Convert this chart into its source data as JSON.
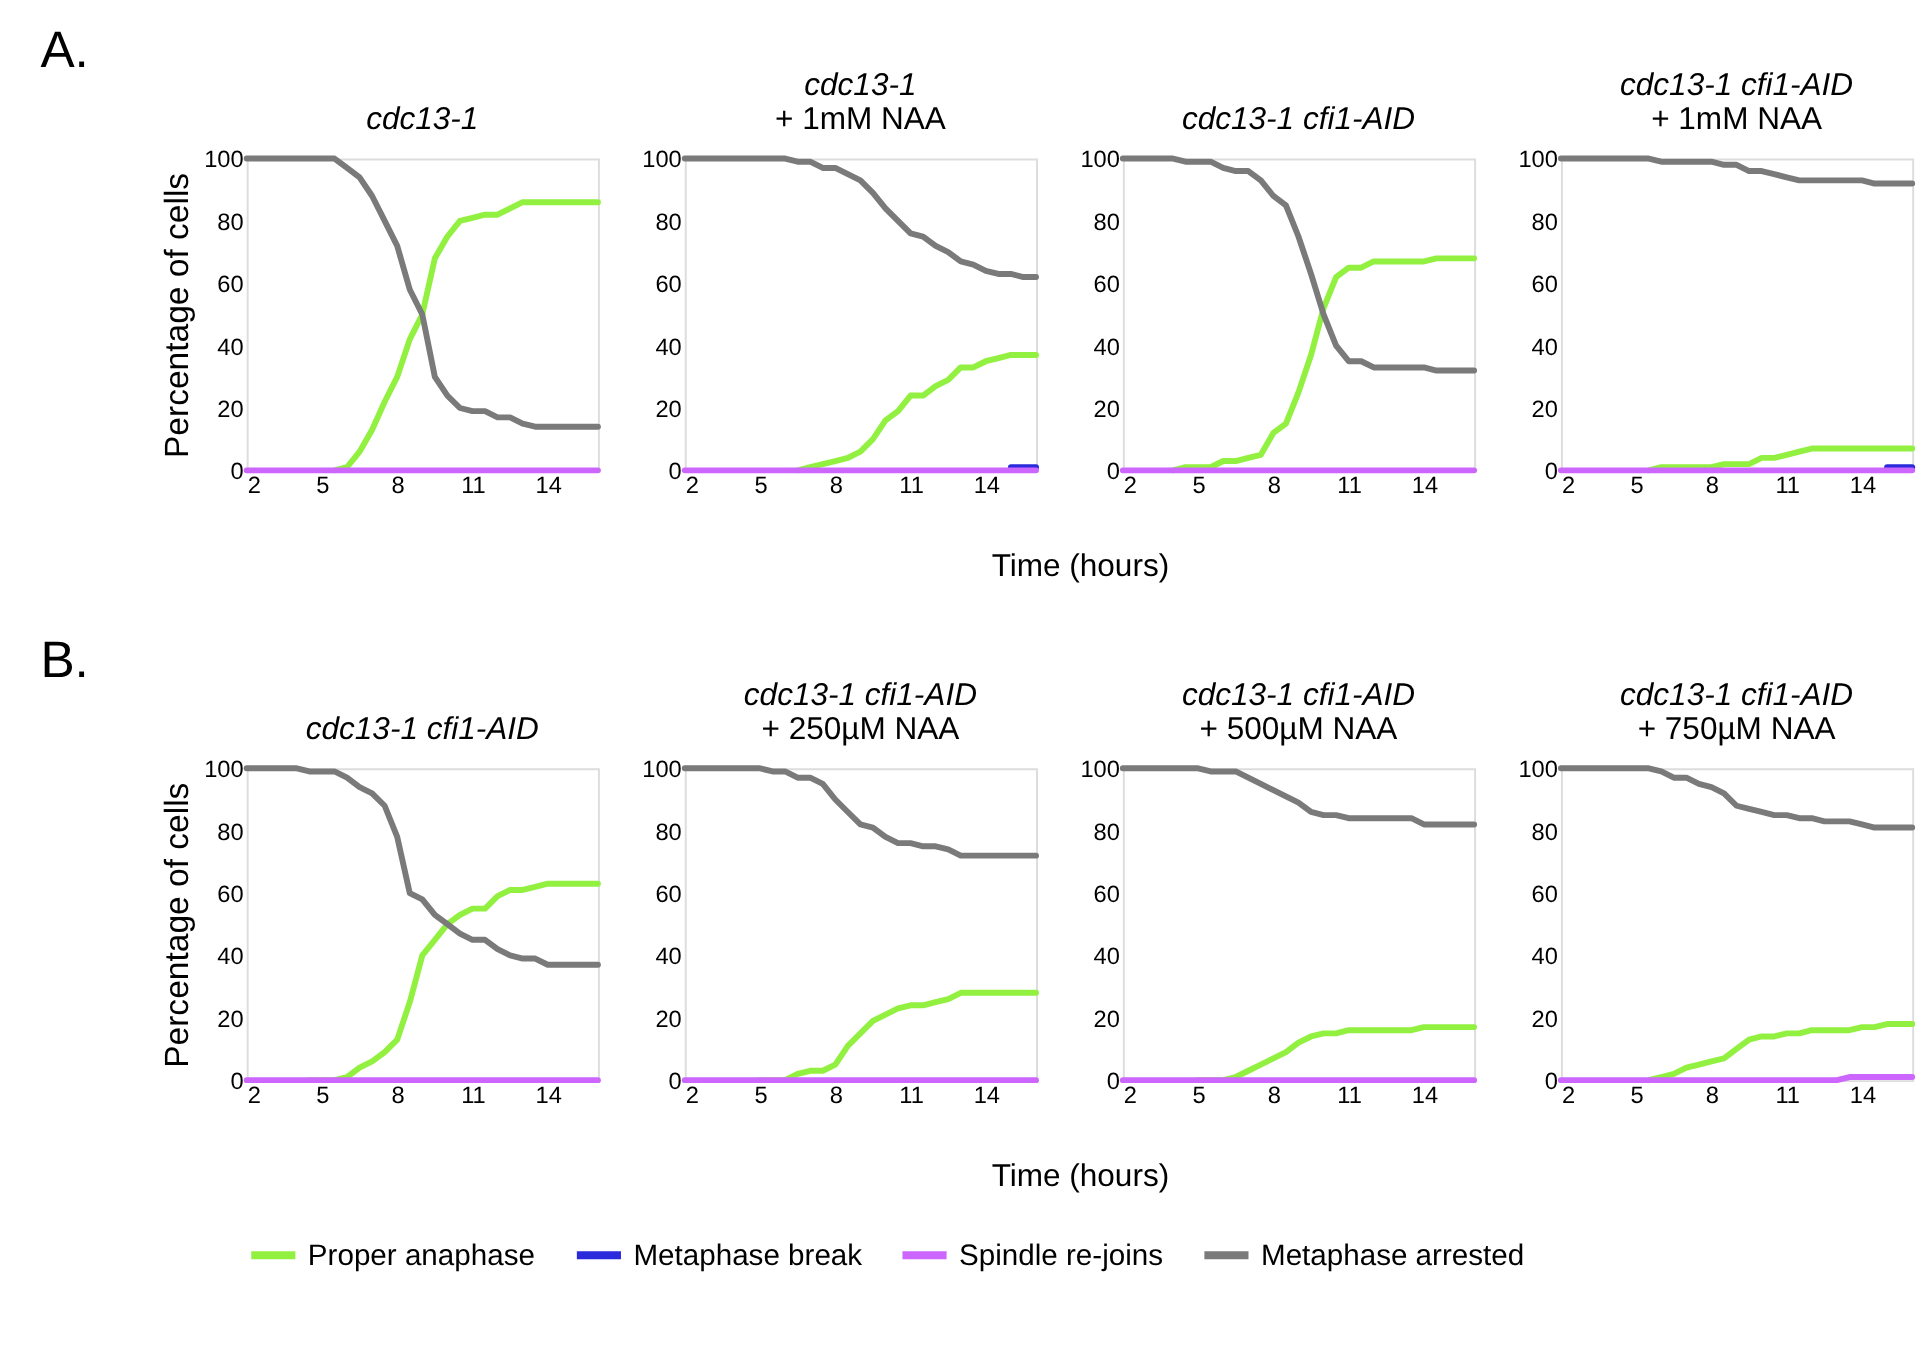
{
  "chart_data": [
    {
      "type": "line",
      "title": "cdc13-1",
      "ylabel": "Percentage of cells",
      "annotations": [
        "A."
      ],
      "xlim": [
        2,
        16
      ],
      "xticks": [
        2,
        5,
        8,
        11,
        14
      ],
      "ylim": [
        0,
        100
      ],
      "yticks": [
        0,
        20,
        40,
        60,
        80,
        100
      ],
      "grid": false,
      "legend": "bottom",
      "line_style": "solid",
      "x": [
        2,
        2.5,
        3,
        3.5,
        4,
        4.5,
        5,
        5.5,
        6,
        6.5,
        7,
        7.5,
        8,
        8.5,
        9,
        9.5,
        10,
        10.5,
        11,
        11.5,
        12,
        12.5,
        13,
        13.5,
        14,
        14.5,
        15,
        15.5,
        16
      ],
      "series": [
        {
          "name": "Proper anaphase",
          "color": "#92f040",
          "values": [
            null,
            null,
            null,
            null,
            null,
            null,
            null,
            0,
            1,
            6,
            13,
            22,
            30,
            42,
            50,
            68,
            75,
            80,
            81,
            82,
            82,
            84,
            86,
            86,
            86,
            86,
            86,
            86,
            86
          ]
        },
        {
          "name": "Metaphase break",
          "color": "#2b2bdb",
          "values": [
            null,
            null,
            null,
            null,
            null,
            null,
            null,
            null,
            null,
            null,
            null,
            null,
            null,
            null,
            null,
            null,
            null,
            null,
            null,
            null,
            null,
            null,
            null,
            null,
            null,
            null,
            null,
            null,
            null
          ]
        },
        {
          "name": "Spindle re-joins",
          "color": "#cc66ff",
          "values": [
            0,
            0,
            0,
            0,
            0,
            0,
            0,
            0,
            0,
            0,
            0,
            0,
            0,
            0,
            0,
            0,
            0,
            0,
            0,
            0,
            0,
            0,
            0,
            0,
            0,
            0,
            0,
            0,
            0
          ]
        },
        {
          "name": "Metaphase arrested",
          "color": "#7a7a7a",
          "values": [
            100,
            100,
            100,
            100,
            100,
            100,
            100,
            100,
            97,
            94,
            88,
            80,
            72,
            58,
            50,
            30,
            24,
            20,
            19,
            19,
            17,
            17,
            15,
            14,
            14,
            14,
            14,
            14,
            14
          ]
        }
      ]
    },
    {
      "type": "line",
      "title": "cdc13-1",
      "subtitle": "+ 1mM NAA",
      "xlabel": "Time (hours)",
      "xlim": [
        2,
        16
      ],
      "xticks": [
        2,
        5,
        8,
        11,
        14
      ],
      "ylim": [
        0,
        100
      ],
      "yticks": [
        0,
        20,
        40,
        60,
        80,
        100
      ],
      "grid": false,
      "line_style": "solid",
      "x": [
        2,
        2.5,
        3,
        3.5,
        4,
        4.5,
        5,
        5.5,
        6,
        6.5,
        7,
        7.5,
        8,
        8.5,
        9,
        9.5,
        10,
        10.5,
        11,
        11.5,
        12,
        12.5,
        13,
        13.5,
        14,
        14.5,
        15,
        15.5,
        16
      ],
      "series": [
        {
          "color": "#92f040",
          "values": [
            null,
            null,
            null,
            null,
            null,
            null,
            null,
            null,
            null,
            0,
            1,
            2,
            3,
            4,
            6,
            10,
            16,
            19,
            24,
            24,
            27,
            29,
            33,
            33,
            35,
            36,
            37,
            37,
            37
          ]
        },
        {
          "color": "#2b2bdb",
          "values": [
            null,
            null,
            null,
            null,
            null,
            null,
            null,
            null,
            null,
            null,
            null,
            null,
            null,
            null,
            null,
            null,
            null,
            null,
            null,
            null,
            null,
            null,
            null,
            null,
            null,
            null,
            1,
            1,
            1
          ]
        },
        {
          "color": "#cc66ff",
          "values": [
            0,
            0,
            0,
            0,
            0,
            0,
            0,
            0,
            0,
            0,
            0,
            0,
            0,
            0,
            0,
            0,
            0,
            0,
            0,
            0,
            0,
            0,
            0,
            0,
            0,
            0,
            0,
            0,
            0
          ]
        },
        {
          "color": "#7a7a7a",
          "values": [
            100,
            100,
            100,
            100,
            100,
            100,
            100,
            100,
            100,
            99,
            99,
            97,
            97,
            95,
            93,
            89,
            84,
            80,
            76,
            75,
            72,
            70,
            67,
            66,
            64,
            63,
            63,
            62,
            62
          ]
        }
      ]
    },
    {
      "type": "line",
      "title": "cdc13-1 cfi1-AID",
      "xlim": [
        2,
        16
      ],
      "xticks": [
        2,
        5,
        8,
        11,
        14
      ],
      "ylim": [
        0,
        100
      ],
      "yticks": [
        0,
        20,
        40,
        60,
        80,
        100
      ],
      "grid": false,
      "line_style": "solid",
      "x": [
        2,
        2.5,
        3,
        3.5,
        4,
        4.5,
        5,
        5.5,
        6,
        6.5,
        7,
        7.5,
        8,
        8.5,
        9,
        9.5,
        10,
        10.5,
        11,
        11.5,
        12,
        12.5,
        13,
        13.5,
        14,
        14.5,
        15,
        15.5,
        16
      ],
      "series": [
        {
          "color": "#92f040",
          "values": [
            null,
            null,
            null,
            null,
            0,
            1,
            1,
            1,
            3,
            3,
            4,
            5,
            12,
            15,
            25,
            37,
            52,
            62,
            65,
            65,
            67,
            67,
            67,
            67,
            67,
            68,
            68,
            68,
            68
          ]
        },
        {
          "color": "#cc66ff",
          "values": [
            0,
            0,
            0,
            0,
            0,
            0,
            0,
            0,
            0,
            0,
            0,
            0,
            0,
            0,
            0,
            0,
            0,
            0,
            0,
            0,
            0,
            0,
            0,
            0,
            0,
            0,
            0,
            0,
            0
          ]
        },
        {
          "color": "#7a7a7a",
          "values": [
            100,
            100,
            100,
            100,
            100,
            99,
            99,
            99,
            97,
            96,
            96,
            93,
            88,
            85,
            75,
            63,
            50,
            40,
            35,
            35,
            33,
            33,
            33,
            33,
            33,
            32,
            32,
            32,
            32
          ]
        }
      ]
    },
    {
      "type": "line",
      "title": "cdc13-1 cfi1-AID",
      "subtitle": "+ 1mM NAA",
      "xlim": [
        2,
        16
      ],
      "xticks": [
        2,
        5,
        8,
        11,
        14
      ],
      "ylim": [
        0,
        100
      ],
      "yticks": [
        0,
        20,
        40,
        60,
        80,
        100
      ],
      "grid": false,
      "line_style": "solid",
      "x": [
        2,
        2.5,
        3,
        3.5,
        4,
        4.5,
        5,
        5.5,
        6,
        6.5,
        7,
        7.5,
        8,
        8.5,
        9,
        9.5,
        10,
        10.5,
        11,
        11.5,
        12,
        12.5,
        13,
        13.5,
        14,
        14.5,
        15,
        15.5,
        16
      ],
      "series": [
        {
          "color": "#92f040",
          "values": [
            null,
            null,
            null,
            null,
            null,
            null,
            null,
            0,
            1,
            1,
            1,
            1,
            1,
            2,
            2,
            2,
            4,
            4,
            5,
            6,
            7,
            7,
            7,
            7,
            7,
            7,
            7,
            7,
            7
          ]
        },
        {
          "color": "#2b2bdb",
          "values": [
            null,
            null,
            null,
            null,
            null,
            null,
            null,
            null,
            null,
            null,
            null,
            null,
            null,
            null,
            null,
            null,
            null,
            null,
            null,
            null,
            null,
            null,
            null,
            null,
            null,
            null,
            1,
            1,
            1
          ]
        },
        {
          "color": "#cc66ff",
          "values": [
            0,
            0,
            0,
            0,
            0,
            0,
            0,
            0,
            0,
            0,
            0,
            0,
            0,
            0,
            0,
            0,
            0,
            0,
            0,
            0,
            0,
            0,
            0,
            0,
            0,
            0,
            0,
            0,
            0
          ]
        },
        {
          "color": "#7a7a7a",
          "values": [
            100,
            100,
            100,
            100,
            100,
            100,
            100,
            100,
            99,
            99,
            99,
            99,
            99,
            98,
            98,
            96,
            96,
            95,
            94,
            93,
            93,
            93,
            93,
            93,
            93,
            92,
            92,
            92,
            92
          ]
        }
      ]
    },
    {
      "type": "line",
      "title": "cdc13-1 cfi1-AID",
      "ylabel": "Percentage of cells",
      "annotations": [
        "B."
      ],
      "xlim": [
        2,
        16
      ],
      "xticks": [
        2,
        5,
        8,
        11,
        14
      ],
      "ylim": [
        0,
        100
      ],
      "yticks": [
        0,
        20,
        40,
        60,
        80,
        100
      ],
      "grid": false,
      "line_style": "solid",
      "x": [
        2,
        2.5,
        3,
        3.5,
        4,
        4.5,
        5,
        5.5,
        6,
        6.5,
        7,
        7.5,
        8,
        8.5,
        9,
        9.5,
        10,
        10.5,
        11,
        11.5,
        12,
        12.5,
        13,
        13.5,
        14,
        14.5,
        15,
        15.5,
        16
      ],
      "series": [
        {
          "color": "#92f040",
          "values": [
            null,
            null,
            null,
            null,
            null,
            0,
            0,
            0,
            1,
            4,
            6,
            9,
            13,
            25,
            40,
            45,
            50,
            53,
            55,
            55,
            59,
            61,
            61,
            62,
            63,
            63,
            63,
            63,
            63
          ]
        },
        {
          "color": "#cc66ff",
          "values": [
            0,
            0,
            0,
            0,
            0,
            0,
            0,
            0,
            0,
            0,
            0,
            0,
            0,
            0,
            0,
            0,
            0,
            0,
            0,
            0,
            0,
            0,
            0,
            0,
            0,
            0,
            0,
            0,
            0
          ]
        },
        {
          "color": "#7a7a7a",
          "values": [
            100,
            100,
            100,
            100,
            100,
            99,
            99,
            99,
            97,
            94,
            92,
            88,
            78,
            60,
            58,
            53,
            50,
            47,
            45,
            45,
            42,
            40,
            39,
            39,
            37,
            37,
            37,
            37,
            37
          ]
        }
      ]
    },
    {
      "type": "line",
      "title": "cdc13-1 cfi1-AID",
      "subtitle": "+ 250µM NAA",
      "xlabel": "Time (hours)",
      "xlim": [
        2,
        16
      ],
      "xticks": [
        2,
        5,
        8,
        11,
        14
      ],
      "ylim": [
        0,
        100
      ],
      "yticks": [
        0,
        20,
        40,
        60,
        80,
        100
      ],
      "grid": false,
      "line_style": "solid",
      "x": [
        2,
        2.5,
        3,
        3.5,
        4,
        4.5,
        5,
        5.5,
        6,
        6.5,
        7,
        7.5,
        8,
        8.5,
        9,
        9.5,
        10,
        10.5,
        11,
        11.5,
        12,
        12.5,
        13,
        13.5,
        14,
        14.5,
        15,
        15.5,
        16
      ],
      "series": [
        {
          "color": "#92f040",
          "values": [
            null,
            null,
            null,
            null,
            null,
            null,
            0,
            0,
            0,
            2,
            3,
            3,
            5,
            11,
            15,
            19,
            21,
            23,
            24,
            24,
            25,
            26,
            28,
            28,
            28,
            28,
            28,
            28,
            28
          ]
        },
        {
          "color": "#cc66ff",
          "values": [
            0,
            0,
            0,
            0,
            0,
            0,
            0,
            0,
            0,
            0,
            0,
            0,
            0,
            0,
            0,
            0,
            0,
            0,
            0,
            0,
            0,
            0,
            0,
            0,
            0,
            0,
            0,
            0,
            0
          ]
        },
        {
          "color": "#7a7a7a",
          "values": [
            100,
            100,
            100,
            100,
            100,
            100,
            100,
            99,
            99,
            97,
            97,
            95,
            90,
            86,
            82,
            81,
            78,
            76,
            76,
            75,
            75,
            74,
            72,
            72,
            72,
            72,
            72,
            72,
            72
          ]
        }
      ]
    },
    {
      "type": "line",
      "title": "cdc13-1 cfi1-AID",
      "subtitle": "+ 500µM NAA",
      "xlim": [
        2,
        16
      ],
      "xticks": [
        2,
        5,
        8,
        11,
        14
      ],
      "ylim": [
        0,
        100
      ],
      "yticks": [
        0,
        20,
        40,
        60,
        80,
        100
      ],
      "grid": false,
      "line_style": "solid",
      "x": [
        2,
        2.5,
        3,
        3.5,
        4,
        4.5,
        5,
        5.5,
        6,
        6.5,
        7,
        7.5,
        8,
        8.5,
        9,
        9.5,
        10,
        10.5,
        11,
        11.5,
        12,
        12.5,
        13,
        13.5,
        14,
        14.5,
        15,
        15.5,
        16
      ],
      "series": [
        {
          "color": "#92f040",
          "values": [
            null,
            null,
            null,
            null,
            null,
            null,
            0,
            0,
            0,
            1,
            3,
            5,
            7,
            9,
            12,
            14,
            15,
            15,
            16,
            16,
            16,
            16,
            16,
            16,
            17,
            17,
            17,
            17,
            17
          ]
        },
        {
          "color": "#cc66ff",
          "values": [
            0,
            0,
            0,
            0,
            0,
            0,
            0,
            0,
            0,
            0,
            0,
            0,
            0,
            0,
            0,
            0,
            0,
            0,
            0,
            0,
            0,
            0,
            0,
            0,
            0,
            0,
            0,
            0,
            0
          ]
        },
        {
          "color": "#7a7a7a",
          "values": [
            100,
            100,
            100,
            100,
            100,
            100,
            100,
            99,
            99,
            99,
            97,
            95,
            93,
            91,
            89,
            86,
            85,
            85,
            84,
            84,
            84,
            84,
            84,
            84,
            82,
            82,
            82,
            82,
            82
          ]
        }
      ]
    },
    {
      "type": "line",
      "title": "cdc13-1 cfi1-AID",
      "subtitle": "+ 750µM NAA",
      "xlim": [
        2,
        16
      ],
      "xticks": [
        2,
        5,
        8,
        11,
        14
      ],
      "ylim": [
        0,
        100
      ],
      "yticks": [
        0,
        20,
        40,
        60,
        80,
        100
      ],
      "grid": false,
      "line_style": "solid",
      "x": [
        2,
        2.5,
        3,
        3.5,
        4,
        4.5,
        5,
        5.5,
        6,
        6.5,
        7,
        7.5,
        8,
        8.5,
        9,
        9.5,
        10,
        10.5,
        11,
        11.5,
        12,
        12.5,
        13,
        13.5,
        14,
        14.5,
        15,
        15.5,
        16
      ],
      "series": [
        {
          "color": "#92f040",
          "values": [
            null,
            null,
            null,
            null,
            null,
            null,
            null,
            0,
            1,
            2,
            4,
            5,
            6,
            7,
            10,
            13,
            14,
            14,
            15,
            15,
            16,
            16,
            16,
            16,
            17,
            17,
            18,
            18,
            18
          ]
        },
        {
          "color": "#cc66ff",
          "values": [
            0,
            0,
            0,
            0,
            0,
            0,
            0,
            0,
            0,
            0,
            0,
            0,
            0,
            0,
            0,
            0,
            0,
            0,
            0,
            0,
            0,
            0,
            0,
            1,
            1,
            1,
            1,
            1,
            1
          ]
        },
        {
          "color": "#7a7a7a",
          "values": [
            100,
            100,
            100,
            100,
            100,
            100,
            100,
            100,
            99,
            97,
            97,
            95,
            94,
            92,
            88,
            87,
            86,
            85,
            85,
            84,
            84,
            83,
            83,
            83,
            82,
            81,
            81,
            81,
            81
          ]
        }
      ]
    }
  ]
}
